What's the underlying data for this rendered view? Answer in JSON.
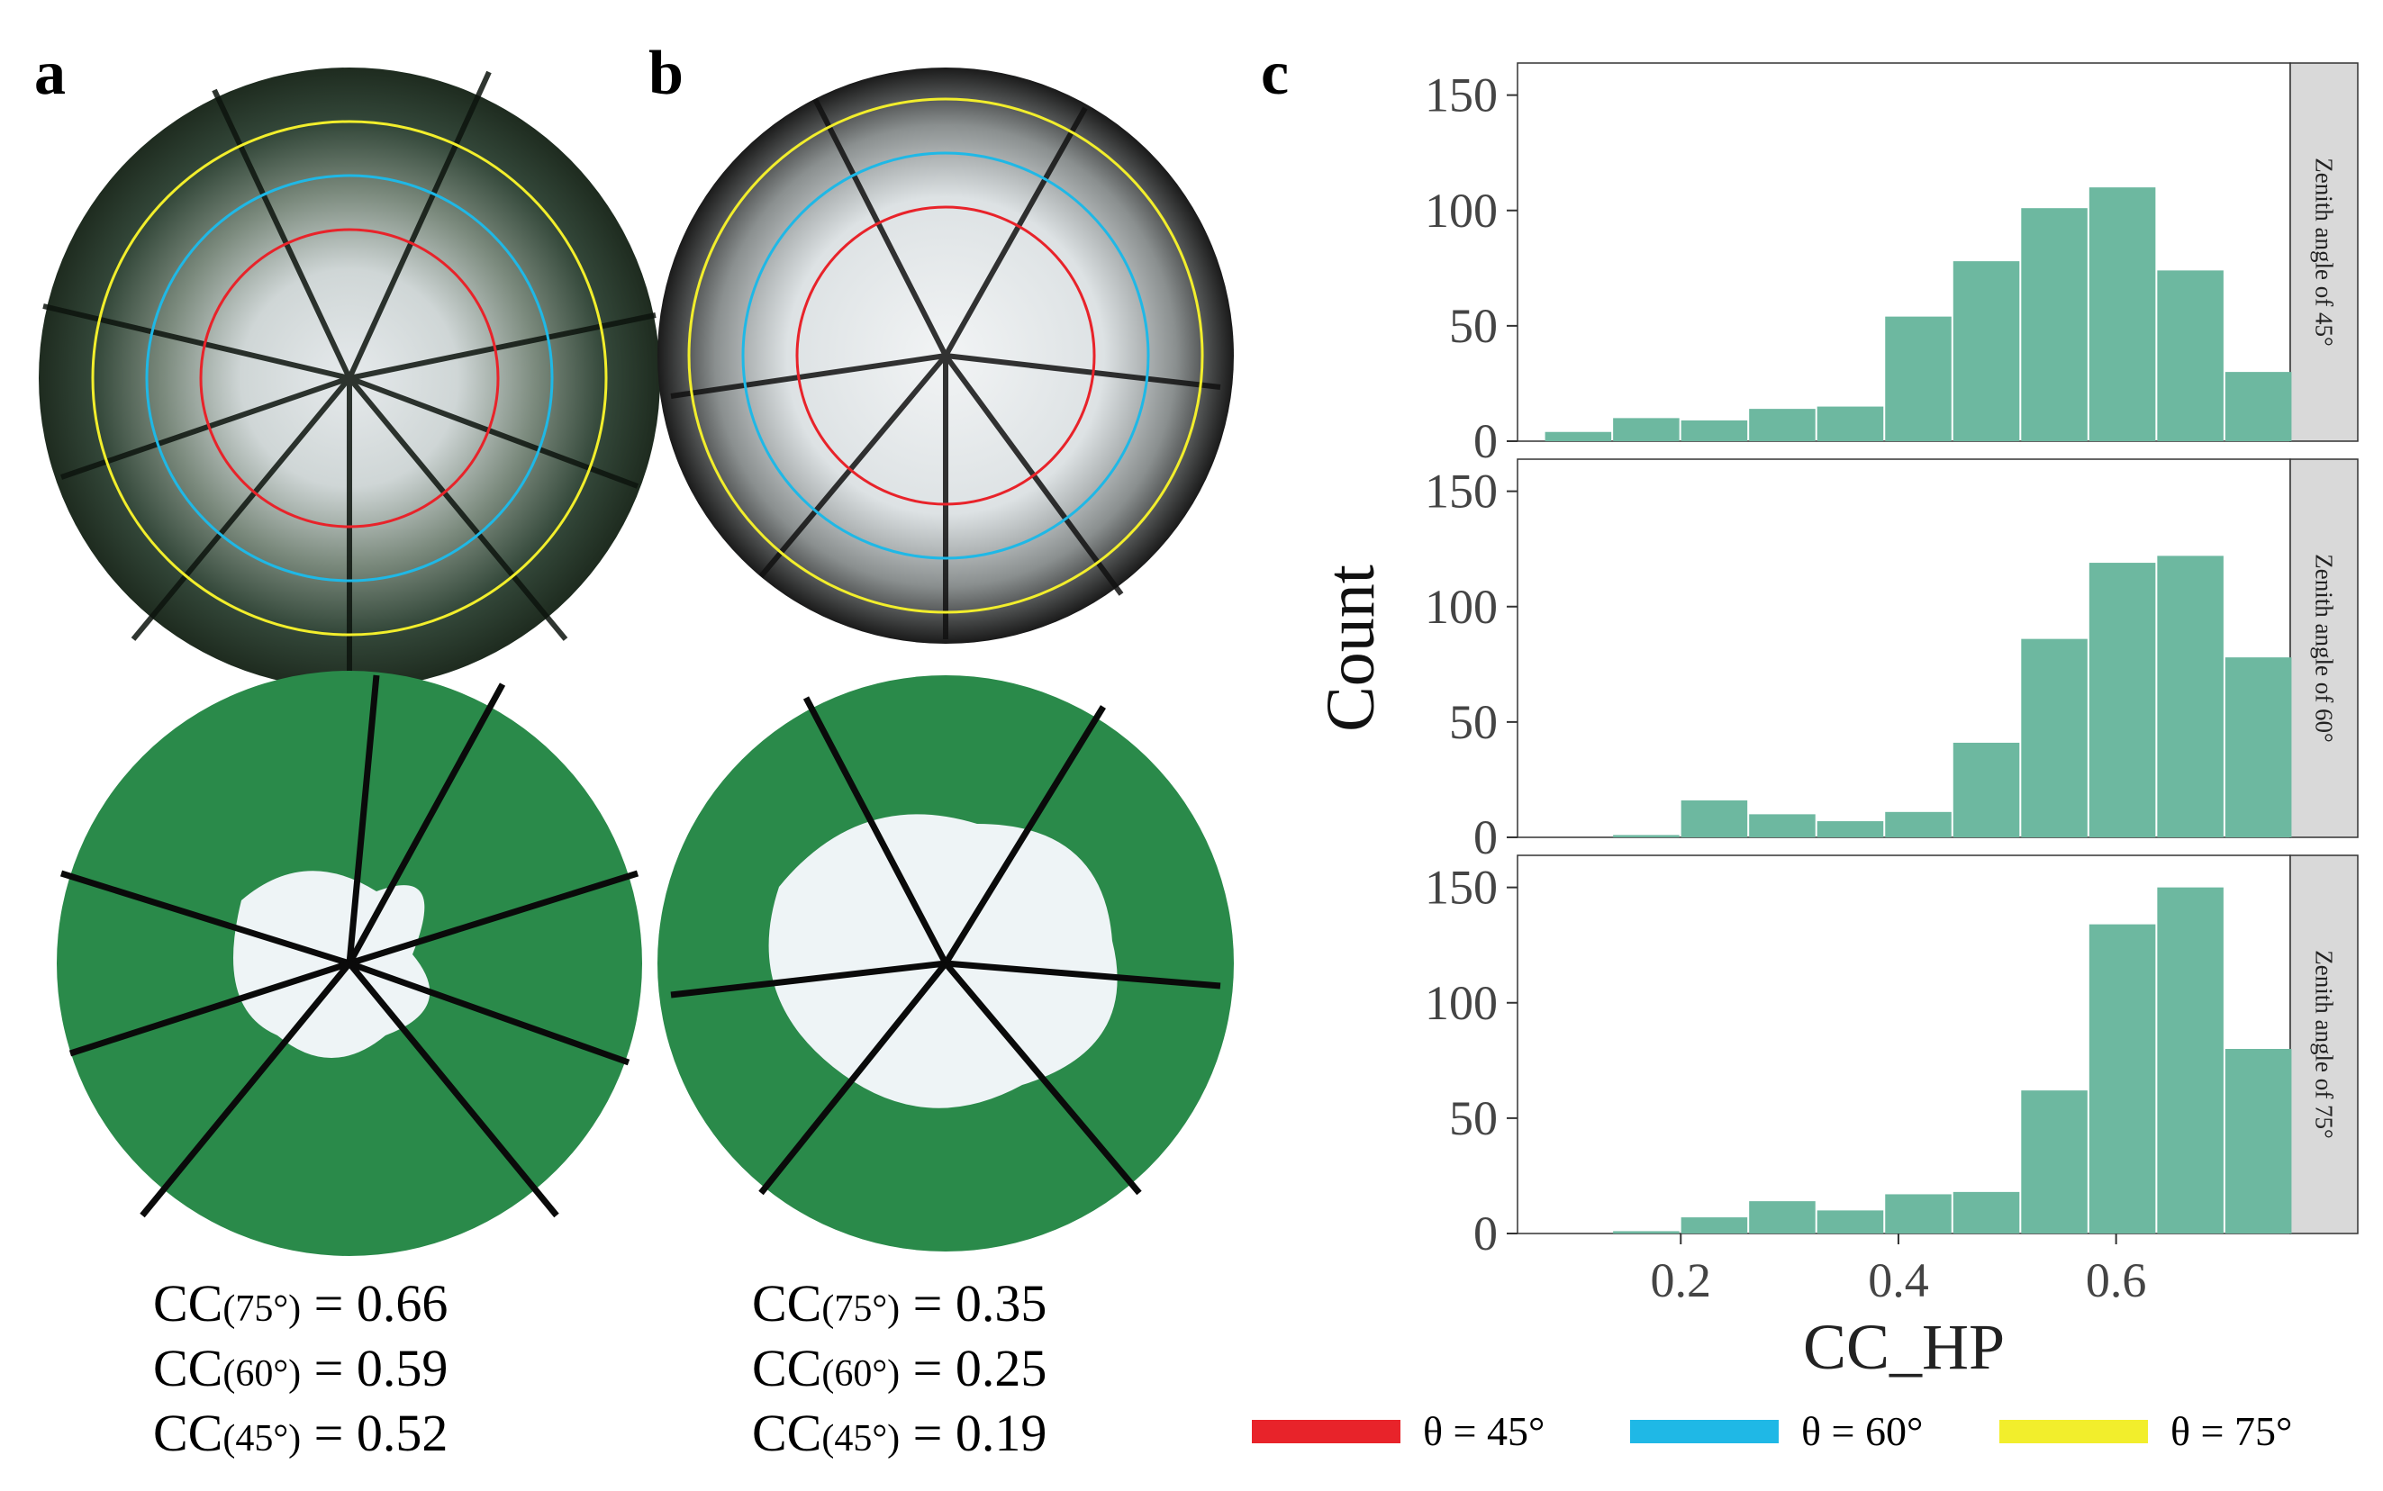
{
  "panels": {
    "a": {
      "label": "a",
      "cc": [
        {
          "prefix": "CC",
          "sub": "(75°)",
          "value": "= 0.66"
        },
        {
          "prefix": "CC",
          "sub": "(60°)",
          "value": "= 0.59"
        },
        {
          "prefix": "CC",
          "sub": "(45°)",
          "value": "= 0.52"
        }
      ]
    },
    "b": {
      "label": "b",
      "cc": [
        {
          "prefix": "CC",
          "sub": "(75°)",
          "value": "= 0.35"
        },
        {
          "prefix": "CC",
          "sub": "(60°)",
          "value": "= 0.25"
        },
        {
          "prefix": "CC",
          "sub": "(45°)",
          "value": "= 0.19"
        }
      ]
    },
    "c": {
      "label": "c"
    }
  },
  "ring_colors": {
    "45": "#e8232a",
    "60": "#1fb8e6",
    "75": "#f2ee2c"
  },
  "photo_colors": {
    "dark_canopy": "#233522",
    "light_canopy": "#d9dde0",
    "classified_green": "#2a8a4a",
    "sky": "#eef4f6"
  },
  "legend": [
    {
      "label": "θ = 45°",
      "color": "#e8232a"
    },
    {
      "label": "θ = 60°",
      "color": "#1fb8e6"
    },
    {
      "label": "θ = 75°",
      "color": "#f2ee2c"
    }
  ],
  "chart_data": {
    "type": "bar",
    "subtype": "faceted-histogram",
    "xlabel": "CC_HP",
    "ylabel": "Count",
    "xlim": [
      0.05,
      0.76
    ],
    "ylim": [
      0,
      160
    ],
    "xticks": [
      "0.2",
      "0.4",
      "0.6"
    ],
    "xtick_values": [
      0.2,
      0.4,
      0.6
    ],
    "yticks": [
      "0",
      "50",
      "100",
      "150"
    ],
    "ytick_values": [
      0,
      50,
      100,
      150
    ],
    "bin_width": 0.0625,
    "bar_color": "#6db8a0",
    "strip_color": "#d9d9d9",
    "panels": [
      {
        "strip": "Zenith angle of 45°",
        "bin_starts": [
          0.0745,
          0.137,
          0.1995,
          0.262,
          0.3245,
          0.387,
          0.4495,
          0.512,
          0.5745,
          0.637,
          0.6995
        ],
        "counts": [
          4,
          10,
          9,
          14,
          15,
          54,
          78,
          101,
          110,
          74,
          30
        ]
      },
      {
        "strip": "Zenith angle of 60°",
        "bin_starts": [
          0.137,
          0.1995,
          0.262,
          0.3245,
          0.387,
          0.4495,
          0.512,
          0.5745,
          0.637,
          0.6995
        ],
        "counts": [
          1,
          16,
          10,
          7,
          11,
          41,
          86,
          119,
          122,
          78
        ]
      },
      {
        "strip": "Zenith angle of 75°",
        "bin_starts": [
          0.137,
          0.1995,
          0.262,
          0.3245,
          0.387,
          0.4495,
          0.512,
          0.5745,
          0.637,
          0.6995
        ],
        "counts": [
          1,
          7,
          14,
          10,
          17,
          18,
          62,
          134,
          150,
          80
        ]
      }
    ]
  }
}
